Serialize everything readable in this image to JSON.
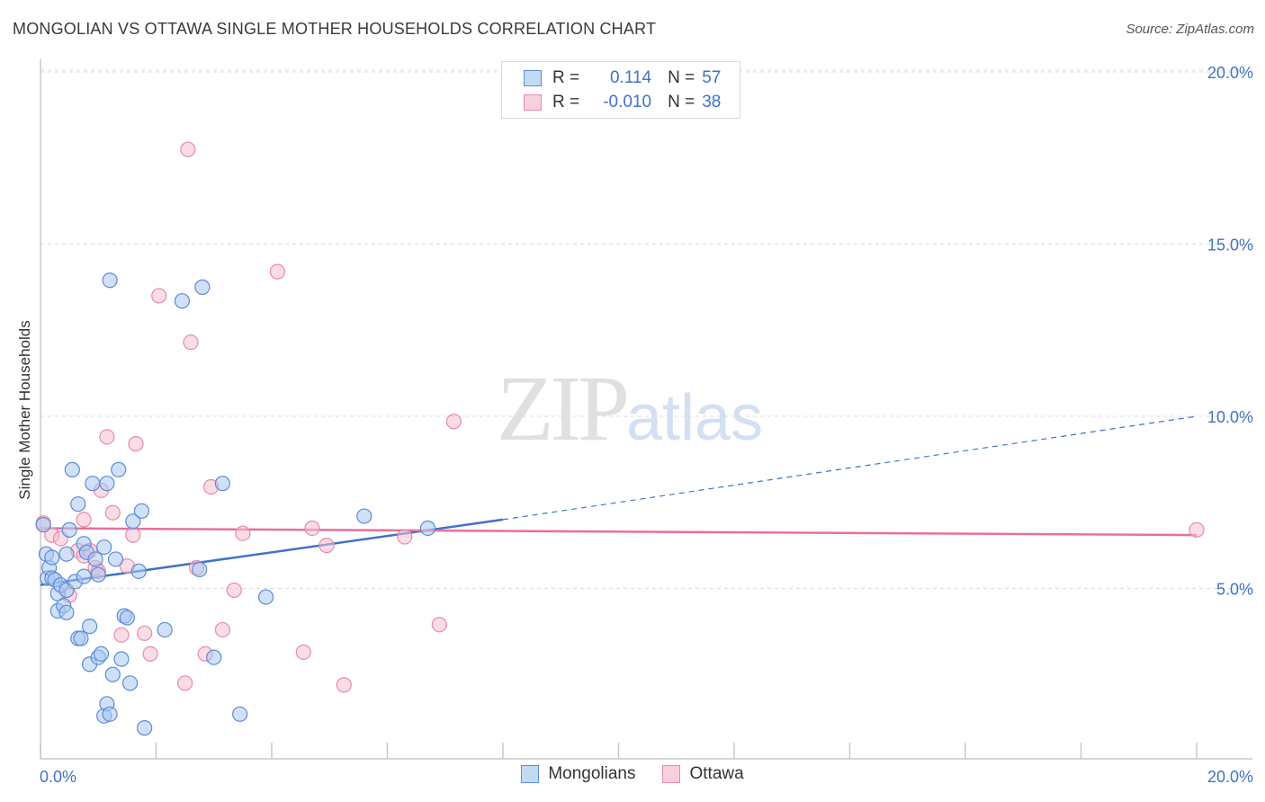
{
  "title": "MONGOLIAN VS OTTAWA SINGLE MOTHER HOUSEHOLDS CORRELATION CHART",
  "source": "Source: ZipAtlas.com",
  "watermark": {
    "zip": "ZIP",
    "atlas": "atlas"
  },
  "colors": {
    "blue": "#3f72c9",
    "blue_fill": "#a9c8f0",
    "pink": "#e8709a",
    "pink_fill": "#f6bfd1"
  },
  "legend_top": {
    "rows": [
      {
        "r_label": "R =",
        "r_value": "0.114",
        "n_label": "N =",
        "n_value": "57"
      },
      {
        "r_label": "R =",
        "r_value": "-0.010",
        "n_label": "N =",
        "n_value": "38"
      }
    ]
  },
  "legend_bottom": {
    "series1": "Mongolians",
    "series2": "Ottawa"
  },
  "chart_data": {
    "type": "scatter",
    "title": "MONGOLIAN VS OTTAWA SINGLE MOTHER HOUSEHOLDS CORRELATION CHART",
    "xlabel": "",
    "ylabel": "Single Mother Households",
    "xlim": [
      0,
      20
    ],
    "ylim": [
      0,
      20
    ],
    "x_tick_labels": [
      "0.0%",
      "20.0%"
    ],
    "y_ticks": [
      5,
      10,
      15,
      20
    ],
    "y_tick_labels": [
      "5.0%",
      "10.0%",
      "15.0%",
      "20.0%"
    ],
    "grid": true,
    "series": [
      {
        "name": "Mongolians",
        "r": 0.114,
        "n": 57,
        "trend": {
          "x0": 0,
          "y0": 5.1,
          "x1": 8,
          "y1": 7.0,
          "dashed_to_x": 20,
          "dashed_to_y": 10.0
        },
        "points": [
          [
            0.05,
            6.85
          ],
          [
            0.1,
            6.0
          ],
          [
            0.12,
            5.3
          ],
          [
            0.15,
            5.6
          ],
          [
            0.2,
            5.9
          ],
          [
            0.2,
            5.3
          ],
          [
            0.25,
            5.25
          ],
          [
            0.3,
            4.85
          ],
          [
            0.3,
            4.35
          ],
          [
            0.35,
            5.1
          ],
          [
            0.4,
            4.5
          ],
          [
            0.45,
            6.0
          ],
          [
            0.45,
            4.95
          ],
          [
            0.45,
            4.3
          ],
          [
            0.5,
            6.7
          ],
          [
            0.55,
            8.45
          ],
          [
            0.6,
            5.2
          ],
          [
            0.65,
            3.55
          ],
          [
            0.65,
            7.45
          ],
          [
            0.7,
            3.55
          ],
          [
            0.75,
            5.35
          ],
          [
            0.75,
            6.3
          ],
          [
            0.8,
            6.05
          ],
          [
            0.85,
            2.8
          ],
          [
            0.85,
            3.9
          ],
          [
            0.9,
            8.05
          ],
          [
            0.95,
            5.85
          ],
          [
            1.0,
            5.4
          ],
          [
            1.0,
            3.0
          ],
          [
            1.05,
            3.1
          ],
          [
            1.1,
            6.2
          ],
          [
            1.1,
            1.3
          ],
          [
            1.15,
            1.65
          ],
          [
            1.15,
            8.05
          ],
          [
            1.2,
            13.95
          ],
          [
            1.2,
            1.35
          ],
          [
            1.25,
            2.5
          ],
          [
            1.3,
            5.85
          ],
          [
            1.35,
            8.45
          ],
          [
            1.4,
            2.95
          ],
          [
            1.45,
            4.2
          ],
          [
            1.5,
            4.15
          ],
          [
            1.55,
            2.25
          ],
          [
            1.6,
            6.95
          ],
          [
            1.7,
            5.5
          ],
          [
            1.75,
            7.25
          ],
          [
            1.8,
            0.95
          ],
          [
            2.15,
            3.8
          ],
          [
            2.45,
            13.35
          ],
          [
            2.8,
            13.75
          ],
          [
            3.0,
            3.0
          ],
          [
            3.15,
            8.05
          ],
          [
            3.45,
            1.35
          ],
          [
            3.9,
            4.75
          ],
          [
            5.6,
            7.1
          ],
          [
            6.7,
            6.75
          ],
          [
            2.75,
            5.55
          ]
        ]
      },
      {
        "name": "Ottawa",
        "r": -0.01,
        "n": 38,
        "trend": {
          "x0": 0,
          "y0": 6.75,
          "x1": 20,
          "y1": 6.55
        },
        "points": [
          [
            0.05,
            6.9
          ],
          [
            0.2,
            6.55
          ],
          [
            0.35,
            6.45
          ],
          [
            0.5,
            4.8
          ],
          [
            0.65,
            6.1
          ],
          [
            0.75,
            5.95
          ],
          [
            0.75,
            7.0
          ],
          [
            0.85,
            6.1
          ],
          [
            0.95,
            5.6
          ],
          [
            1.0,
            5.5
          ],
          [
            1.05,
            7.85
          ],
          [
            1.15,
            9.4
          ],
          [
            1.25,
            7.2
          ],
          [
            1.4,
            3.65
          ],
          [
            1.5,
            5.65
          ],
          [
            1.6,
            6.55
          ],
          [
            1.65,
            9.2
          ],
          [
            1.8,
            3.7
          ],
          [
            1.9,
            3.1
          ],
          [
            2.05,
            13.5
          ],
          [
            2.5,
            2.25
          ],
          [
            2.55,
            17.75
          ],
          [
            2.6,
            12.15
          ],
          [
            2.85,
            3.1
          ],
          [
            2.95,
            7.95
          ],
          [
            3.15,
            3.8
          ],
          [
            3.35,
            4.95
          ],
          [
            3.5,
            6.6
          ],
          [
            4.1,
            14.2
          ],
          [
            4.55,
            3.15
          ],
          [
            4.7,
            6.75
          ],
          [
            4.95,
            6.25
          ],
          [
            5.25,
            2.2
          ],
          [
            6.3,
            6.5
          ],
          [
            6.9,
            3.95
          ],
          [
            7.15,
            9.85
          ],
          [
            20.0,
            6.7
          ],
          [
            2.7,
            5.6
          ]
        ]
      }
    ]
  }
}
